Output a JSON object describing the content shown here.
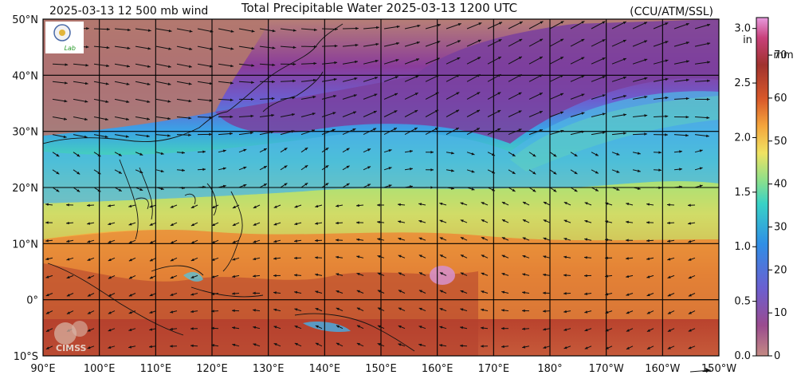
{
  "header": {
    "left_label": "2025-03-13 12 500 mb wind",
    "title": "Total Precipitable Water  2025-03-13 1200 UTC",
    "credit": "(CCU/ATM/SSL)"
  },
  "logos": {
    "top_left_text": "Lab",
    "bottom_left_text": "CIMSS"
  },
  "map": {
    "lat_labels": [
      "50°N",
      "40°N",
      "30°N",
      "20°N",
      "10°N",
      "0°",
      "10°S"
    ],
    "lon_labels": [
      "90°E",
      "100°E",
      "110°E",
      "120°E",
      "130°E",
      "140°E",
      "150°E",
      "160°E",
      "170°E",
      "180°",
      "170°W",
      "160°W",
      "150°W"
    ]
  },
  "colorbar": {
    "inch_ticks": [
      "3.0",
      "2.5",
      "2.0",
      "1.5",
      "1.0",
      "0.5",
      "0.0"
    ],
    "inch_unit": "in",
    "mm_ticks": [
      "70",
      "60",
      "50",
      "40",
      "30",
      "20",
      "10",
      "0"
    ],
    "mm_unit": "mm",
    "colors": [
      "#c48a83",
      "#8a3c9a",
      "#6b5fd0",
      "#2f8ee6",
      "#38d2c6",
      "#8ee08a",
      "#f0e262",
      "#f4a53c",
      "#d8582a",
      "#a0322e",
      "#c8407a",
      "#e79adf"
    ]
  }
}
